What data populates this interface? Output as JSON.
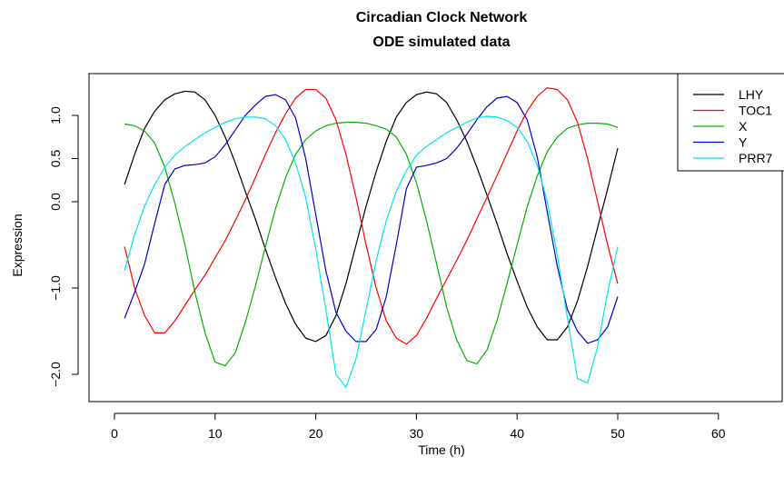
{
  "chart_data": {
    "type": "line",
    "title": "Circadian Clock Network",
    "subtitle": "ODE simulated data",
    "xlabel": "Time (h)",
    "ylabel": "Expression",
    "xlim": [
      0,
      68
    ],
    "ylim": [
      -2.2,
      1.35
    ],
    "x_ticks": [
      0,
      10,
      20,
      30,
      40,
      50,
      60
    ],
    "y_ticks": [
      1.0,
      0.5,
      0.0,
      -1.0,
      -2.0
    ],
    "y_tick_labels": [
      "1.0",
      "0.5",
      "0.0",
      "−1.0",
      "−2.0"
    ],
    "grid": false,
    "legend_position": "top-right",
    "x": [
      1,
      2,
      3,
      4,
      5,
      6,
      7,
      8,
      9,
      10,
      11,
      12,
      13,
      14,
      15,
      16,
      17,
      18,
      19,
      20,
      21,
      22,
      23,
      24,
      25,
      26,
      27,
      28,
      29,
      30,
      31,
      32,
      33,
      34,
      35,
      36,
      37,
      38,
      39,
      40,
      41,
      42,
      43,
      44,
      45,
      46,
      47,
      48,
      49,
      50
    ],
    "series": [
      {
        "name": "LHY",
        "color": "#000000",
        "values": [
          0.2,
          0.55,
          0.85,
          1.05,
          1.18,
          1.25,
          1.28,
          1.27,
          1.18,
          1.0,
          0.75,
          0.45,
          0.12,
          -0.2,
          -0.55,
          -0.88,
          -1.18,
          -1.42,
          -1.58,
          -1.62,
          -1.55,
          -1.32,
          -0.95,
          -0.5,
          -0.05,
          0.35,
          0.7,
          0.98,
          1.15,
          1.24,
          1.27,
          1.25,
          1.15,
          0.95,
          0.7,
          0.4,
          0.08,
          -0.25,
          -0.6,
          -0.92,
          -1.22,
          -1.45,
          -1.6,
          -1.6,
          -1.45,
          -1.15,
          -0.75,
          -0.3,
          0.15,
          0.62
        ]
      },
      {
        "name": "TOC1",
        "color": "#ff0000",
        "values": [
          -0.52,
          -1.0,
          -1.32,
          -1.52,
          -1.52,
          -1.38,
          -1.2,
          -1.02,
          -0.85,
          -0.65,
          -0.45,
          -0.22,
          0.02,
          0.28,
          0.55,
          0.8,
          1.02,
          1.2,
          1.3,
          1.3,
          1.2,
          0.95,
          0.55,
          0.05,
          -0.5,
          -1.0,
          -1.38,
          -1.58,
          -1.65,
          -1.55,
          -1.35,
          -1.12,
          -0.9,
          -0.68,
          -0.45,
          -0.2,
          0.05,
          0.3,
          0.56,
          0.82,
          1.05,
          1.22,
          1.32,
          1.3,
          1.18,
          0.92,
          0.5,
          0.0,
          -0.5,
          -0.95
        ]
      },
      {
        "name": "X",
        "color": "#00b000",
        "values": [
          0.9,
          0.88,
          0.82,
          0.68,
          0.4,
          -0.02,
          -0.5,
          -1.05,
          -1.52,
          -1.86,
          -1.9,
          -1.75,
          -1.4,
          -0.98,
          -0.52,
          -0.08,
          0.28,
          0.55,
          0.72,
          0.82,
          0.88,
          0.91,
          0.92,
          0.92,
          0.91,
          0.88,
          0.84,
          0.75,
          0.55,
          0.22,
          -0.22,
          -0.72,
          -1.22,
          -1.6,
          -1.84,
          -1.88,
          -1.72,
          -1.38,
          -0.95,
          -0.5,
          -0.06,
          0.3,
          0.58,
          0.75,
          0.85,
          0.89,
          0.91,
          0.91,
          0.9,
          0.86
        ]
      },
      {
        "name": "Y",
        "color": "#0000cc",
        "values": [
          -1.35,
          -1.05,
          -0.72,
          -0.25,
          0.2,
          0.38,
          0.42,
          0.43,
          0.45,
          0.52,
          0.66,
          0.83,
          1.0,
          1.12,
          1.22,
          1.24,
          1.18,
          0.97,
          0.5,
          -0.15,
          -0.8,
          -1.28,
          -1.5,
          -1.62,
          -1.62,
          -1.48,
          -1.1,
          -0.5,
          0.15,
          0.4,
          0.42,
          0.45,
          0.5,
          0.62,
          0.78,
          0.95,
          1.1,
          1.2,
          1.22,
          1.15,
          0.95,
          0.52,
          -0.12,
          -0.75,
          -1.25,
          -1.5,
          -1.64,
          -1.6,
          -1.45,
          -1.1
        ]
      },
      {
        "name": "PRR7",
        "color": "#00e5e5",
        "values": [
          -0.8,
          -0.38,
          -0.05,
          0.2,
          0.4,
          0.54,
          0.64,
          0.72,
          0.8,
          0.86,
          0.92,
          0.96,
          0.98,
          0.98,
          0.96,
          0.88,
          0.72,
          0.45,
          0.05,
          -0.55,
          -1.25,
          -2.0,
          -2.15,
          -1.82,
          -1.25,
          -0.68,
          -0.22,
          0.12,
          0.36,
          0.54,
          0.64,
          0.72,
          0.8,
          0.86,
          0.92,
          0.97,
          0.99,
          0.98,
          0.94,
          0.86,
          0.7,
          0.42,
          0.0,
          -0.62,
          -1.35,
          -2.05,
          -2.1,
          -1.68,
          -1.05,
          -0.52
        ]
      }
    ]
  }
}
